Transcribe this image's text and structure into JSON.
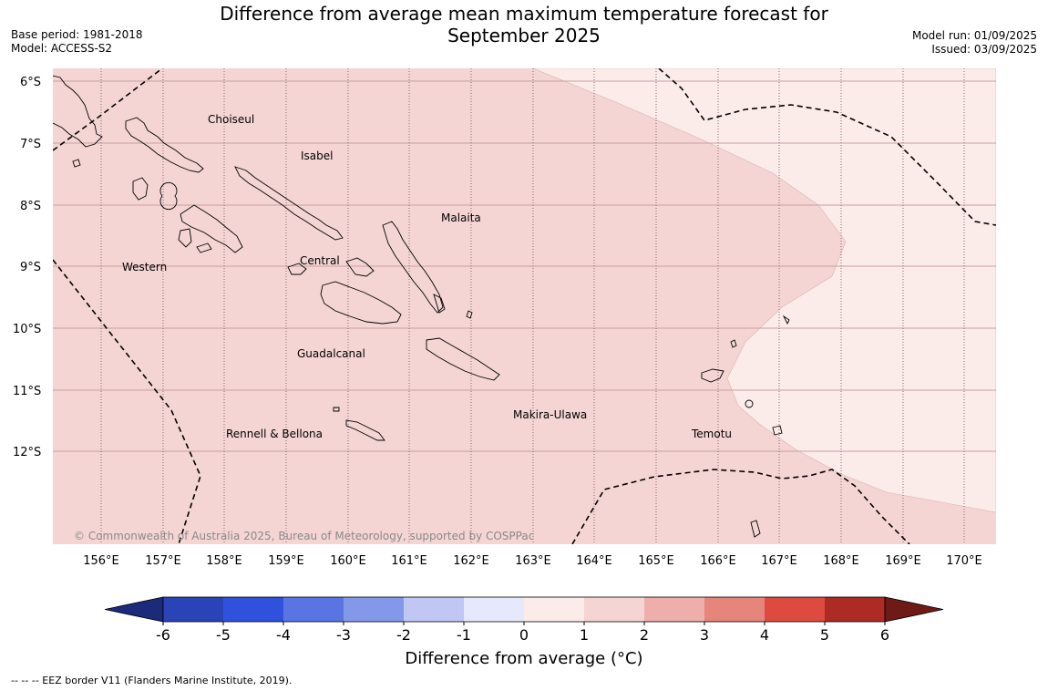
{
  "title": {
    "line1": "Difference from average mean maximum temperature forecast for",
    "line2": "September 2025"
  },
  "meta_left": {
    "base_period": "Base period: 1981-2018",
    "model": "Model: ACCESS-S2"
  },
  "meta_right": {
    "model_run": "Model run: 01/09/2025",
    "issued": "Issued: 03/09/2025"
  },
  "map": {
    "latitudes": [
      "6°S",
      "7°S",
      "8°S",
      "9°S",
      "10°S",
      "11°S",
      "12°S"
    ],
    "longitudes": [
      "156°E",
      "157°E",
      "158°E",
      "159°E",
      "160°E",
      "161°E",
      "162°E",
      "163°E",
      "164°E",
      "165°E",
      "166°E",
      "167°E",
      "168°E",
      "169°E",
      "170°E"
    ],
    "places": {
      "choiseul": "Choiseul",
      "isabel": "Isabel",
      "malaita": "Malaita",
      "western": "Western",
      "central": "Central",
      "guadalcanal": "Guadalcanal",
      "makira": "Makira-Ulawa",
      "rennell": "Rennell & Bellona",
      "temotu": "Temotu"
    },
    "copyright": "© Commonwealth of Australia 2025, Bureau of Meteorology, supported by COSPPac",
    "fill_colors": {
      "anomaly_1_to_2": "#f4d5d3",
      "anomaly_0_to_1": "#fbebe9"
    }
  },
  "colorbar": {
    "ticks": [
      "-6",
      "-5",
      "-4",
      "-3",
      "-2",
      "-1",
      "0",
      "1",
      "2",
      "3",
      "4",
      "5",
      "6"
    ],
    "colors": [
      "#1b2b7a",
      "#2a44b8",
      "#3050de",
      "#5a74e4",
      "#8498ea",
      "#bfc7f2",
      "#e6e9fb",
      "#fbebe9",
      "#f4d5d3",
      "#eeaeaa",
      "#e6857c",
      "#dc4a40",
      "#ae2a25",
      "#6e1a17"
    ],
    "label": "Difference from average (°C)"
  },
  "footnote": "-- -- -- EEZ border V11 (Flanders Marine Institute, 2019)."
}
